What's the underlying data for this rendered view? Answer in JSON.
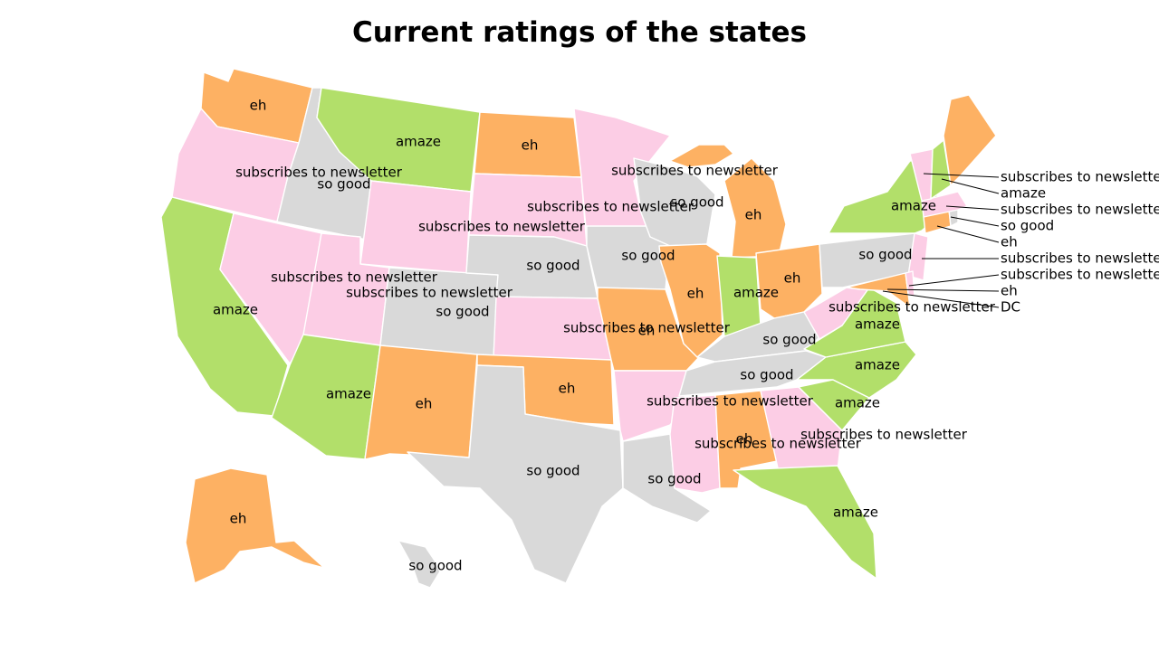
{
  "title": "Current ratings of the states",
  "legend_colors": {
    "amaze": "#b2df6a",
    "eh": "#fdb163",
    "so good": "#d9d9d9",
    "subscribes to newsletter": "#fccde5"
  },
  "states": {
    "WA": {
      "rating": "eh"
    },
    "OR": {
      "rating": "subscribes to newsletter"
    },
    "CA": {
      "rating": "amaze"
    },
    "ID": {
      "rating": "so good"
    },
    "NV": {
      "rating": "subscribes to newsletter"
    },
    "MT": {
      "rating": "amaze"
    },
    "WY": {
      "rating": "subscribes to newsletter"
    },
    "UT": {
      "rating": "subscribes to newsletter"
    },
    "AZ": {
      "rating": "amaze"
    },
    "CO": {
      "rating": "so good"
    },
    "NM": {
      "rating": "eh"
    },
    "ND": {
      "rating": "eh"
    },
    "SD": {
      "rating": "subscribes to newsletter"
    },
    "NE": {
      "rating": "so good"
    },
    "KS": {
      "rating": "subscribes to newsletter"
    },
    "OK": {
      "rating": "eh"
    },
    "TX": {
      "rating": "so good"
    },
    "MN": {
      "rating": "subscribes to newsletter"
    },
    "IA": {
      "rating": "so good"
    },
    "MO": {
      "rating": "eh"
    },
    "AR": {
      "rating": "subscribes to newsletter"
    },
    "LA": {
      "rating": "so good"
    },
    "WI": {
      "rating": "so good"
    },
    "IL": {
      "rating": "eh"
    },
    "MI": {
      "rating": "eh"
    },
    "IN": {
      "rating": "amaze"
    },
    "OH": {
      "rating": "eh"
    },
    "KY": {
      "rating": "so good"
    },
    "TN": {
      "rating": "so good"
    },
    "MS": {
      "rating": "subscribes to newsletter"
    },
    "AL": {
      "rating": "eh"
    },
    "GA": {
      "rating": "subscribes to newsletter"
    },
    "FL": {
      "rating": "amaze"
    },
    "SC": {
      "rating": "amaze"
    },
    "NC": {
      "rating": "amaze"
    },
    "VA": {
      "rating": "amaze"
    },
    "WV": {
      "rating": "subscribes to newsletter"
    },
    "PA": {
      "rating": "so good"
    },
    "NY": {
      "rating": "amaze"
    },
    "NJ": {
      "rating": "subscribes to newsletter"
    },
    "MD": {
      "rating": "eh"
    },
    "DE": {
      "rating": "subscribes to newsletter"
    },
    "DC": {
      "rating": "DC"
    },
    "CT": {
      "rating": "eh"
    },
    "RI": {
      "rating": "so good"
    },
    "MA": {
      "rating": "subscribes to newsletter"
    },
    "VT": {
      "rating": "subscribes to newsletter"
    },
    "NH": {
      "rating": "amaze"
    },
    "ME": {
      "rating": "eh"
    },
    "AK": {
      "rating": "eh"
    },
    "HI": {
      "rating": "so good"
    }
  }
}
